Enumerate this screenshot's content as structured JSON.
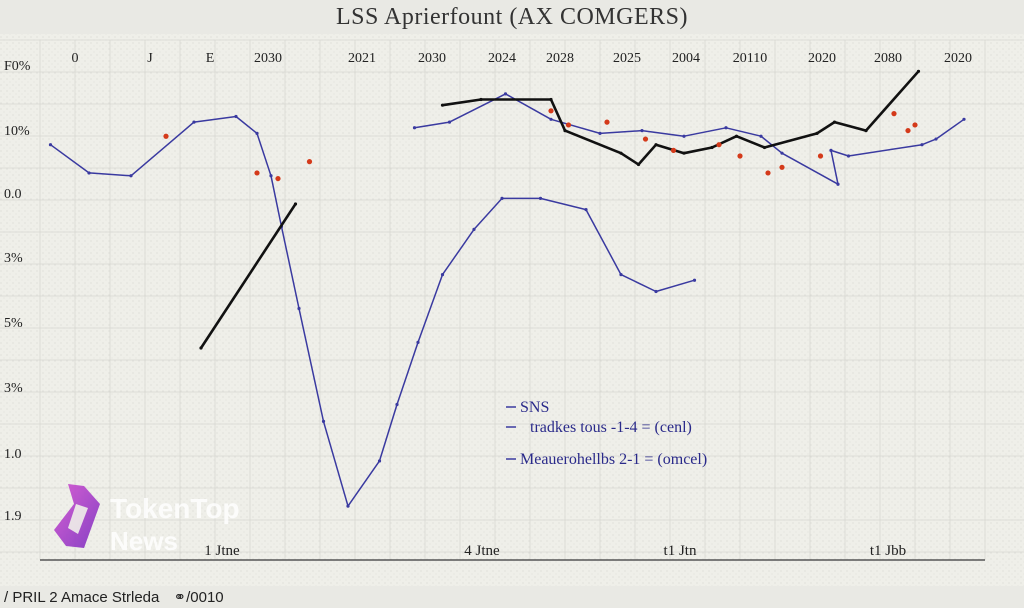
{
  "chart_data": {
    "type": "line",
    "title": "LSS Aprierfount (AX COMGERS)",
    "xlabel": "",
    "ylabel": "",
    "x_top_ticks": [
      "0",
      "J",
      "E",
      "2030",
      "2021",
      "2030",
      "2024",
      "2028",
      "2025",
      "2004",
      "20110",
      "2020",
      "2080",
      "2020"
    ],
    "x_bottom_ticks": [
      "1 Jtne",
      "4 Jtne",
      "t1 Jtn",
      "t1 Jbb"
    ],
    "y_ticks": [
      "F0%",
      "10%",
      "0.0",
      "3%",
      "5%",
      "3%",
      "1.0",
      "1.9"
    ],
    "series": [
      {
        "name": "SNS",
        "color": "#3a3aa0",
        "points": [
          [
            0.3,
            0.5
          ],
          [
            1.4,
            1.0
          ],
          [
            2.6,
            1.05
          ],
          [
            4.4,
            0.1
          ],
          [
            5.6,
            0.0
          ],
          [
            6.2,
            0.3
          ],
          [
            6.6,
            1.05
          ],
          [
            6.9,
            1.95
          ],
          [
            7.4,
            3.4
          ],
          [
            8.1,
            5.4
          ],
          [
            8.8,
            6.9
          ],
          [
            9.7,
            6.1
          ],
          [
            10.2,
            5.1
          ],
          [
            10.8,
            4.0
          ],
          [
            11.5,
            2.8
          ],
          [
            12.4,
            2.0
          ],
          [
            13.2,
            1.45
          ],
          [
            14.3,
            1.45
          ],
          [
            15.6,
            1.65
          ],
          [
            16.6,
            2.8
          ],
          [
            17.6,
            3.1
          ],
          [
            18.7,
            2.9
          ]
        ]
      },
      {
        "name": "Meauerohellbs 2-1 = (omcel)",
        "color": "#3a3aa0",
        "points": [
          [
            10.7,
            0.2
          ],
          [
            11.7,
            0.1
          ],
          [
            13.3,
            -0.4
          ],
          [
            14.6,
            0.05
          ],
          [
            16.0,
            0.3
          ],
          [
            17.2,
            0.25
          ],
          [
            18.4,
            0.35
          ],
          [
            19.6,
            0.2
          ],
          [
            20.6,
            0.35
          ],
          [
            21.2,
            0.65
          ],
          [
            22.8,
            1.2
          ],
          [
            22.6,
            0.6
          ],
          [
            23.1,
            0.7
          ],
          [
            25.2,
            0.5
          ],
          [
            25.6,
            0.4
          ],
          [
            26.4,
            0.05
          ]
        ]
      },
      {
        "name": "tradkes tous -1-4 = (cenl)",
        "color": "#111111",
        "points": [
          [
            11.5,
            -0.2
          ],
          [
            12.6,
            -0.3
          ],
          [
            14.6,
            -0.3
          ],
          [
            15.0,
            0.25
          ],
          [
            16.6,
            0.65
          ],
          [
            17.1,
            0.85
          ],
          [
            17.6,
            0.5
          ],
          [
            18.4,
            0.65
          ],
          [
            19.2,
            0.55
          ],
          [
            19.9,
            0.35
          ],
          [
            20.7,
            0.55
          ],
          [
            22.2,
            0.3
          ],
          [
            22.7,
            0.1
          ],
          [
            23.6,
            0.25
          ],
          [
            25.1,
            -0.8
          ]
        ]
      },
      {
        "name": "",
        "color": "#111111",
        "points": [
          [
            4.6,
            4.1
          ],
          [
            7.3,
            1.55
          ]
        ]
      }
    ],
    "scatter_points": [
      [
        3.6,
        0.35
      ],
      [
        6.2,
        1.0
      ],
      [
        6.8,
        1.1
      ],
      [
        7.7,
        0.8
      ],
      [
        14.6,
        -0.1
      ],
      [
        15.1,
        0.15
      ],
      [
        16.2,
        0.1
      ],
      [
        17.3,
        0.4
      ],
      [
        18.1,
        0.6
      ],
      [
        19.4,
        0.5
      ],
      [
        20.0,
        0.7
      ],
      [
        20.8,
        1.0
      ],
      [
        21.2,
        0.9
      ],
      [
        22.3,
        0.7
      ],
      [
        24.4,
        -0.05
      ],
      [
        24.8,
        0.25
      ],
      [
        25.0,
        0.15
      ]
    ],
    "legend": [
      {
        "label": "SNS"
      },
      {
        "label": "tradkes tous -1-4 = (cenl)"
      },
      {
        "label": "Meauerohellbs 2-1 = (omcel)"
      }
    ],
    "grid": true,
    "legend_position": "center-right"
  },
  "watermark": {
    "line1": "TokenTop",
    "line2": "News"
  },
  "footer": {
    "text": "/ PRIL 2 Amace Strleda",
    "suffix": "/0010"
  }
}
